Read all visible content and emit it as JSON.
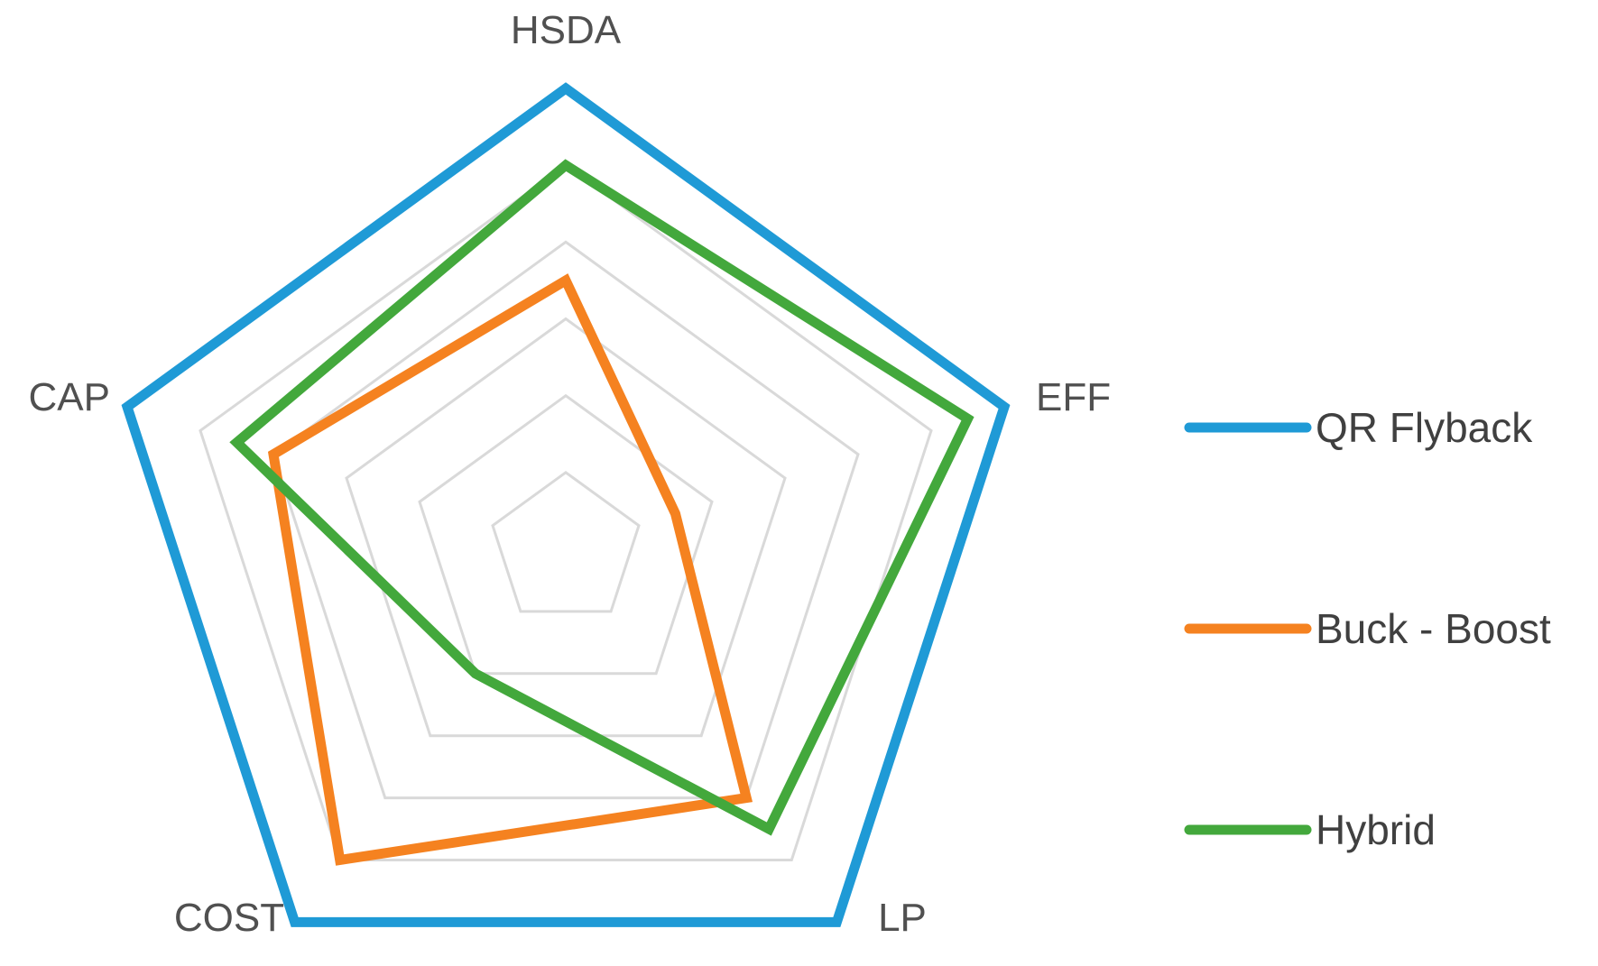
{
  "chart_data": {
    "type": "radar",
    "title": "",
    "axes": [
      "HSDA",
      "EFF",
      "LP",
      "COST",
      "CAP"
    ],
    "range": [
      0,
      6
    ],
    "rings": 6,
    "grid": true,
    "legend_position": "right",
    "series": [
      {
        "name": "QR Flyback",
        "color": "#1f9ad6",
        "values": [
          6,
          6,
          6,
          6,
          6
        ]
      },
      {
        "name": "Buck - Boost",
        "color": "#f58220",
        "values": [
          3.5,
          1.5,
          4,
          5,
          4
        ]
      },
      {
        "name": "Hybrid",
        "color": "#43a83c",
        "values": [
          5,
          5.5,
          4.5,
          2,
          4.5
        ]
      }
    ]
  }
}
